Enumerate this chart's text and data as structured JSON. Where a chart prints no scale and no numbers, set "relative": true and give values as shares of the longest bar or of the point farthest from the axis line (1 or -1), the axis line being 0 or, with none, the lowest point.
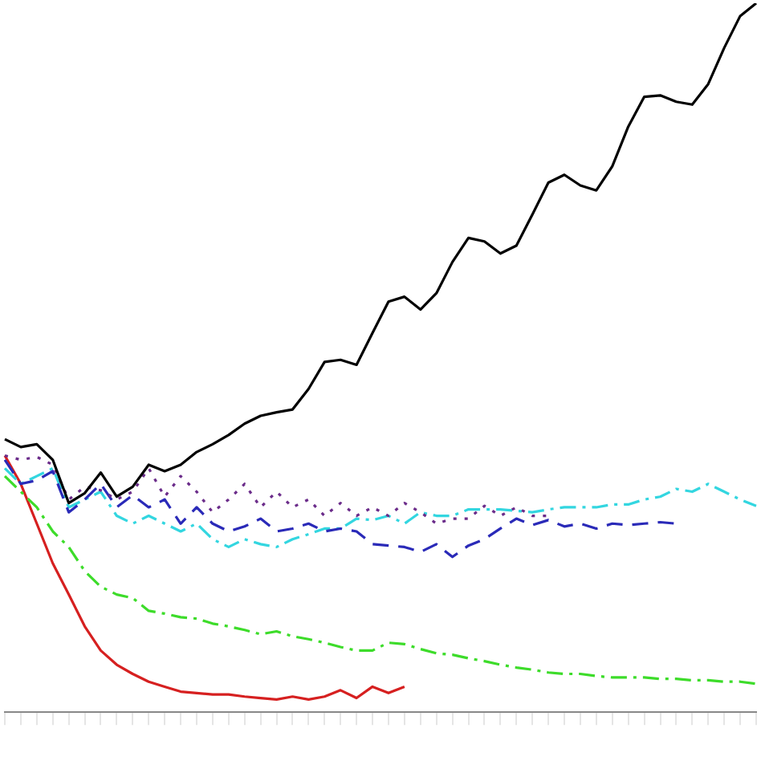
{
  "chart_data": {
    "type": "line",
    "relative": true,
    "grid": false,
    "legend": false,
    "marker": "none",
    "categories": [
      null,
      null,
      null,
      null,
      null,
      null,
      null,
      null,
      null,
      null,
      null,
      null,
      null,
      null,
      null,
      null,
      null,
      null,
      null,
      null,
      null,
      null,
      null,
      null,
      null,
      null,
      null,
      null,
      null,
      null,
      null,
      null,
      null,
      null,
      null,
      null,
      null,
      null,
      null,
      null,
      null,
      null,
      null,
      null,
      null,
      null,
      null,
      null
    ],
    "series": [
      {
        "color": "#000000",
        "line_style": "solid",
        "values": [
          0.385,
          0.374,
          0.378,
          0.356,
          0.295,
          0.309,
          0.338,
          0.304,
          0.318,
          0.349,
          0.34,
          0.349,
          0.367,
          0.378,
          0.391,
          0.407,
          0.418,
          0.423,
          0.427,
          0.456,
          0.494,
          0.497,
          0.49,
          0.535,
          0.579,
          0.586,
          0.568,
          0.591,
          0.635,
          0.669,
          0.664,
          0.647,
          0.658,
          0.702,
          0.747,
          0.758,
          0.743,
          0.736,
          0.77,
          0.826,
          0.868,
          0.87,
          0.861,
          0.857,
          0.886,
          0.937,
          0.982,
          1
        ]
      },
      {
        "color": "#6b2c8a",
        "line_style": "dotted",
        "values": [
          0.362,
          0.356,
          0.36,
          0.349,
          0.3,
          0.318,
          0.313,
          0.3,
          0.311,
          0.344,
          0.304,
          0.333,
          0.311,
          0.282,
          0.3,
          0.322,
          0.289,
          0.311,
          0.289,
          0.3,
          0.277,
          0.295,
          0.277,
          0.289,
          0.277,
          0.295,
          0.282,
          0.266,
          0.273,
          0.273,
          0.291,
          0.277,
          0.289,
          0.277,
          0.277,
          null,
          null,
          null,
          null,
          null,
          null,
          null,
          null,
          null,
          null,
          null,
          null,
          null
        ]
      },
      {
        "color": "#2a2ab8",
        "line_style": "dashed",
        "values": [
          0.356,
          0.322,
          0.327,
          0.34,
          0.282,
          0.3,
          0.322,
          0.289,
          0.306,
          0.289,
          0.3,
          0.266,
          0.289,
          0.266,
          0.255,
          0.262,
          0.273,
          0.255,
          0.259,
          0.266,
          0.255,
          0.259,
          0.255,
          0.237,
          0.235,
          0.233,
          0.226,
          0.237,
          0.219,
          0.235,
          0.244,
          0.259,
          0.273,
          0.264,
          0.271,
          0.262,
          0.266,
          0.259,
          0.266,
          0.264,
          0.266,
          0.268,
          0.266,
          null,
          null,
          null,
          null,
          null
        ]
      },
      {
        "color": "#33d6e0",
        "line_style": "dashdot",
        "values": [
          0.344,
          0.322,
          0.333,
          0.344,
          0.289,
          0.3,
          0.311,
          0.277,
          0.266,
          0.277,
          0.266,
          0.255,
          0.266,
          0.244,
          0.233,
          0.244,
          0.237,
          0.233,
          0.244,
          0.251,
          0.259,
          0.259,
          0.273,
          0.271,
          0.277,
          0.266,
          0.282,
          0.277,
          0.277,
          0.286,
          0.286,
          0.286,
          0.284,
          0.282,
          0.286,
          0.289,
          0.289,
          0.289,
          0.293,
          0.293,
          0.3,
          0.304,
          0.315,
          0.311,
          0.322,
          0.311,
          0.3,
          0.291
        ]
      },
      {
        "color": "#3ddc2a",
        "line_style": "dashdot",
        "values": [
          0.333,
          0.311,
          0.289,
          0.255,
          0.233,
          0.199,
          0.177,
          0.166,
          0.161,
          0.143,
          0.139,
          0.134,
          0.132,
          0.125,
          0.121,
          0.116,
          0.11,
          0.114,
          0.107,
          0.103,
          0.098,
          0.092,
          0.087,
          0.087,
          0.098,
          0.096,
          0.089,
          0.083,
          0.081,
          0.076,
          0.072,
          0.067,
          0.063,
          0.06,
          0.056,
          0.054,
          0.054,
          0.051,
          0.049,
          0.049,
          0.049,
          0.047,
          0.047,
          0.045,
          0.045,
          0.043,
          0.043,
          0.04
        ]
      },
      {
        "color": "#d62020",
        "line_style": "solid",
        "values": [
          0.362,
          0.322,
          0.266,
          0.21,
          0.166,
          0.121,
          0.087,
          0.067,
          0.054,
          0.043,
          0.036,
          0.029,
          0.027,
          0.025,
          0.025,
          0.022,
          0.02,
          0.018,
          0.022,
          0.018,
          0.022,
          0.031,
          0.02,
          0.036,
          0.027,
          0.036,
          null,
          null,
          null,
          null,
          null,
          null,
          null,
          null,
          null,
          null,
          null,
          null,
          null,
          null,
          null,
          null,
          null,
          null,
          null,
          null,
          null,
          null
        ]
      }
    ]
  }
}
